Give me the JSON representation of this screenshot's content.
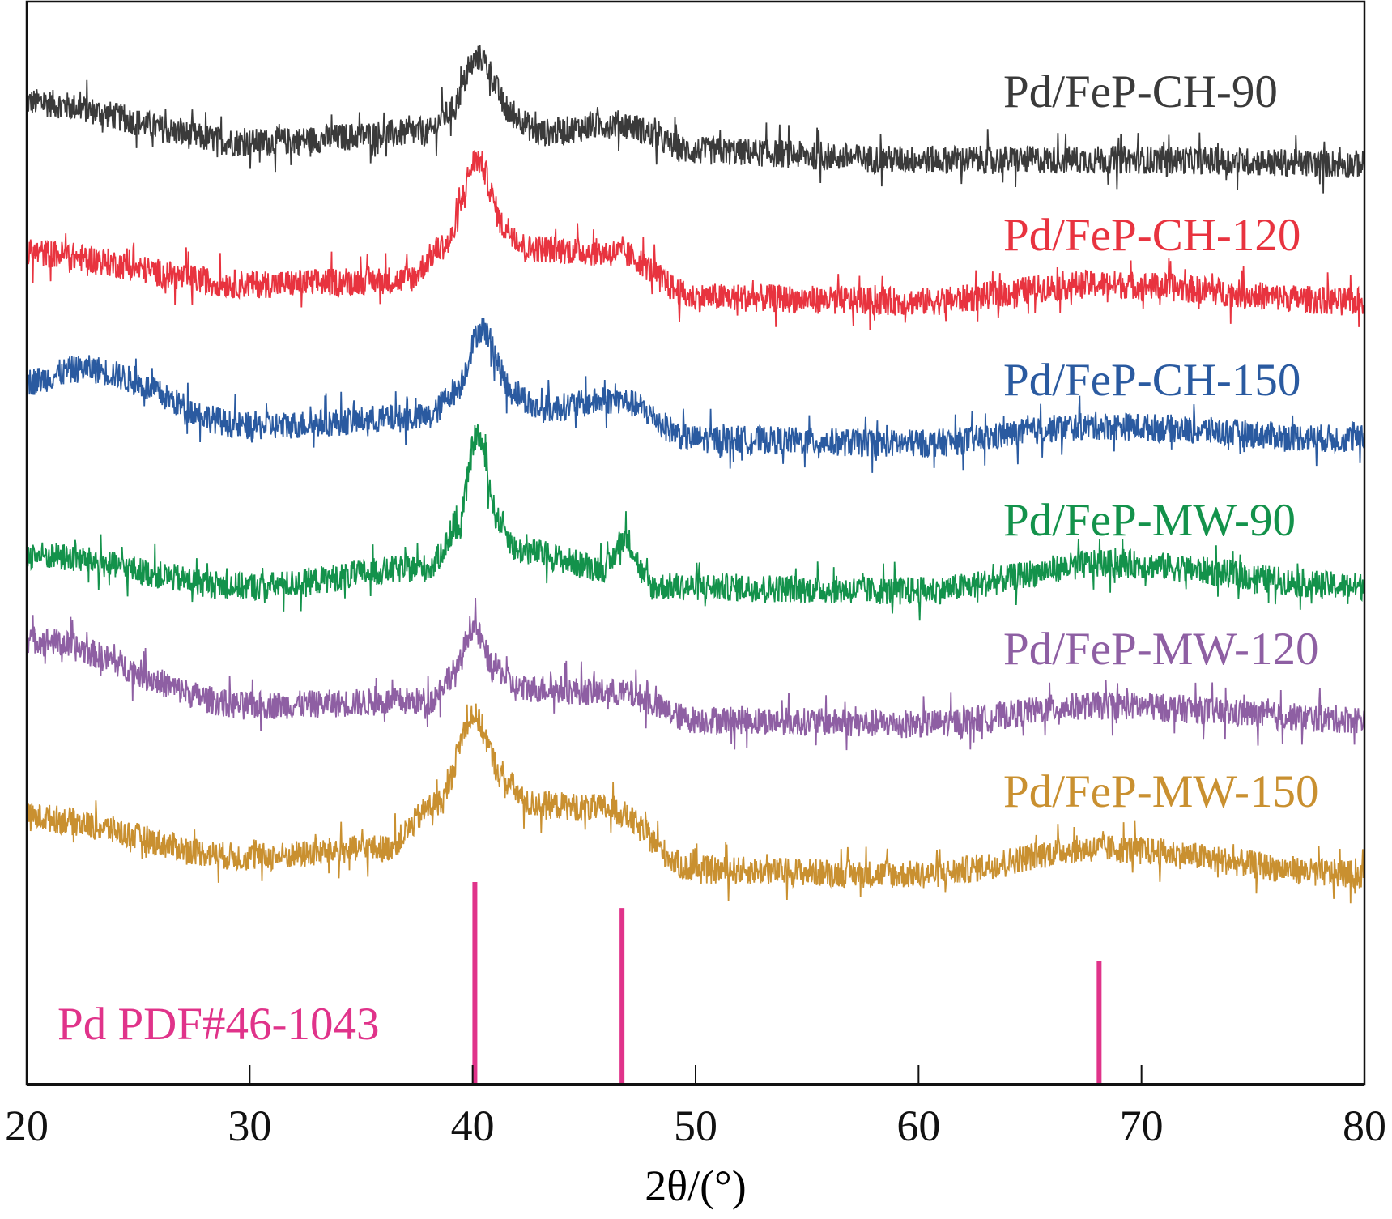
{
  "chart_data": {
    "type": "line",
    "xlabel": "2θ/(°)",
    "xlim": [
      20,
      80
    ],
    "xticks": [
      20,
      30,
      40,
      50,
      60,
      70,
      80
    ],
    "ylabel": "",
    "ylim": [
      0,
      100
    ],
    "y_units": "a.u. (stacked, no y ticks)",
    "grid": false,
    "legend": "labels placed at right above each curve",
    "series": [
      {
        "name": "Pd/FeP-CH-90",
        "color": "#3a3a3a",
        "x": [
          20,
          30,
          38,
          38.8,
          40.3,
          41.8,
          43,
          46.5,
          50,
          60,
          70,
          80
        ],
        "y": [
          90.7,
          87.0,
          87.9,
          89.5,
          94.8,
          89.5,
          87.9,
          88.7,
          86.2,
          85.4,
          85.4,
          85.0
        ]
      },
      {
        "name": "Pd/FeP-CH-120",
        "color": "#e8333f",
        "x": [
          20,
          30,
          37,
          38.8,
          40.2,
          41.5,
          42.5,
          46.5,
          50,
          60,
          68,
          80
        ],
        "y": [
          76.8,
          73.9,
          74.3,
          77.5,
          85.4,
          79.0,
          77.2,
          76.8,
          72.7,
          72.3,
          73.9,
          72.3
        ]
      },
      {
        "name": "Pd/FeP-CH-150",
        "color": "#2a5aa0",
        "x": [
          20,
          22.5,
          30,
          38,
          39.2,
          40.4,
          41.8,
          43,
          46.5,
          50,
          60,
          68,
          80
        ],
        "y": [
          64.9,
          66.1,
          60.8,
          61.6,
          64.0,
          69.8,
          64.0,
          62.4,
          63.2,
          59.6,
          59.2,
          60.8,
          59.6
        ]
      },
      {
        "name": "Pd/FeP-MW-90",
        "color": "#13924b",
        "x": [
          20,
          30,
          38,
          39.3,
          40.2,
          41.2,
          42,
          46,
          46.8,
          48,
          60,
          68.5,
          80
        ],
        "y": [
          48.9,
          46.0,
          47.7,
          51.0,
          60.0,
          52.0,
          49.3,
          47.7,
          50.5,
          46.0,
          45.6,
          48.1,
          46.0
        ]
      },
      {
        "name": "Pd/FeP-MW-120",
        "color": "#8e5fa3",
        "x": [
          20,
          30,
          38,
          39.2,
          40,
          41,
          42,
          46.5,
          50,
          60,
          68,
          80
        ],
        "y": [
          41.1,
          35.0,
          35.4,
          38.0,
          42.3,
          38.5,
          36.6,
          36.2,
          33.7,
          33.3,
          35.0,
          33.7
        ]
      },
      {
        "name": "Pd/FeP-MW-150",
        "color": "#c99030",
        "x": [
          20,
          30,
          36,
          38.5,
          40,
          41.5,
          42.5,
          46,
          50,
          60,
          68,
          80
        ],
        "y": [
          24.7,
          21.0,
          21.8,
          26.0,
          34.1,
          28.0,
          25.9,
          25.5,
          19.8,
          19.4,
          21.8,
          19.4
        ]
      }
    ],
    "reference": {
      "name": "Pd PDF#46-1043",
      "color": "#e0338a",
      "x": [
        40.1,
        46.7,
        68.1
      ],
      "y": [
        18.7,
        16.3,
        11.4
      ]
    }
  }
}
